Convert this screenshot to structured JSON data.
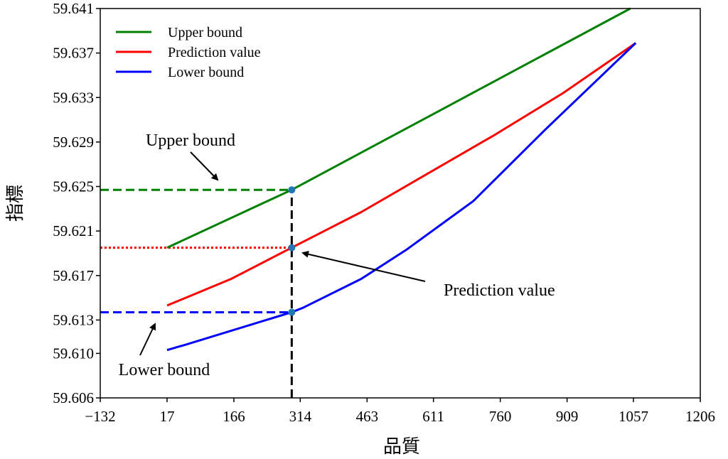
{
  "chart_data": {
    "type": "line",
    "title": "",
    "xlabel": "品質",
    "ylabel": "指標",
    "xlim": [
      -132,
      1206
    ],
    "ylim": [
      59.606,
      59.641
    ],
    "xticks": [
      -132,
      17,
      166,
      314,
      463,
      611,
      760,
      909,
      1057,
      1206
    ],
    "xtick_labels": [
      "−132",
      "17",
      "166",
      "314",
      "463",
      "611",
      "760",
      "909",
      "1057",
      "1206"
    ],
    "yticks": [
      59.606,
      59.61,
      59.613,
      59.617,
      59.621,
      59.625,
      59.629,
      59.633,
      59.637,
      59.641
    ],
    "ytick_labels": [
      "59.606",
      "59.610",
      "59.613",
      "59.617",
      "59.621",
      "59.625",
      "59.629",
      "59.633",
      "59.637",
      "59.641"
    ],
    "grid": false,
    "legend_position": "top-left",
    "series": [
      {
        "name": "Upper bound",
        "color": "#008000",
        "x": [
          17,
          295,
          1050
        ],
        "y": [
          59.6195,
          59.6247,
          59.641
        ]
      },
      {
        "name": "Prediction value",
        "color": "#ff0000",
        "x": [
          17,
          160,
          295,
          450,
          600,
          750,
          900,
          1062
        ],
        "y": [
          59.6143,
          59.6167,
          59.6195,
          59.6227,
          59.6262,
          59.6297,
          59.6334,
          59.6379
        ]
      },
      {
        "name": "Lower bound",
        "color": "#0000ff",
        "x": [
          17,
          60,
          295,
          320,
          450,
          550,
          700,
          860,
          1062
        ],
        "y": [
          59.6103,
          59.6108,
          59.6137,
          59.6141,
          59.6167,
          59.6193,
          59.6237,
          59.6301,
          59.6379
        ]
      }
    ],
    "reference_lines": [
      {
        "kind": "horizontal",
        "y": 59.6247,
        "x_from": -132,
        "x_to": 295,
        "color": "#008000",
        "style": "dashed"
      },
      {
        "kind": "horizontal",
        "y": 59.6195,
        "x_from": -132,
        "x_to": 295,
        "color": "#ff0000",
        "style": "dotted"
      },
      {
        "kind": "horizontal",
        "y": 59.6137,
        "x_from": -132,
        "x_to": 295,
        "color": "#0000ff",
        "style": "dashed"
      },
      {
        "kind": "vertical",
        "x": 295,
        "y_from": 59.606,
        "y_to": 59.6247,
        "color": "#000000",
        "style": "dashed"
      }
    ],
    "markers": [
      {
        "x": 295,
        "y": 59.6247,
        "color": "#1f77b4"
      },
      {
        "x": 295,
        "y": 59.6195,
        "color": "#1f77b4"
      },
      {
        "x": 295,
        "y": 59.6137,
        "color": "#1f77b4"
      }
    ],
    "annotations": [
      {
        "text": "Upper bound",
        "target_x": 295,
        "target_y": 59.6247
      },
      {
        "text": "Prediction value",
        "target_x": 300,
        "target_y": 59.6195
      },
      {
        "text": "Lower bound",
        "target_x": 295,
        "target_y": 59.6137
      }
    ]
  }
}
